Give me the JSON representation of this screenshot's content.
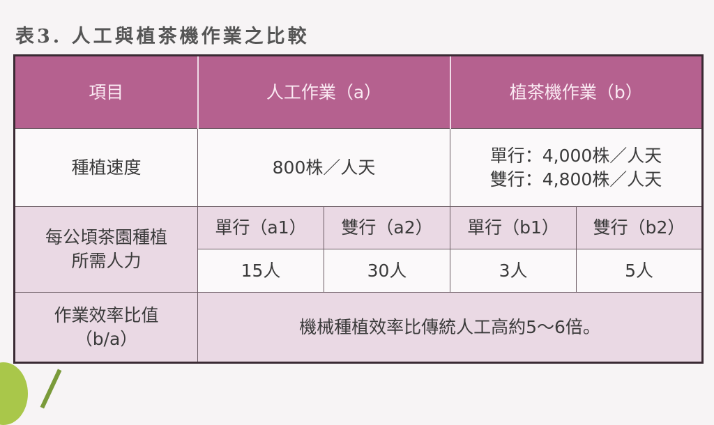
{
  "title": "表3. 人工與植茶機作業之比較",
  "colors": {
    "header": "#b5618f",
    "light_row": "#ead9e4",
    "white_row": "#fbf9fa"
  },
  "header": {
    "item": "項目",
    "manual": "人工作業（a）",
    "machine": "植茶機作業（b）"
  },
  "speed": {
    "label": "種植速度",
    "manual": "800株／人天",
    "machine_single": "單行：4,000株／人天",
    "machine_double": "雙行：4,800株／人天"
  },
  "labor": {
    "label_line1": "每公頃茶園種植",
    "label_line2": "所需人力",
    "subheaders": [
      "單行（a1）",
      "雙行（a2）",
      "單行（b1）",
      "雙行（b2）"
    ],
    "values": [
      "15人",
      "30人",
      "3人",
      "5人"
    ]
  },
  "ratio": {
    "label_line1": "作業效率比值",
    "label_line2": "（b/a）",
    "value": "機械種植效率比傳統人工高約5～6倍。"
  }
}
